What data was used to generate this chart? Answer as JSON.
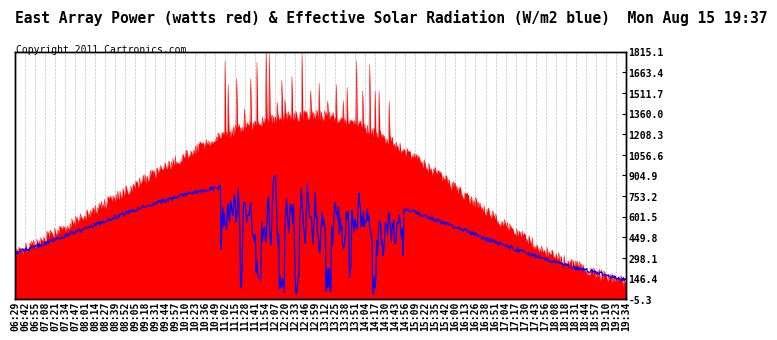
{
  "title": "East Array Power (watts red) & Effective Solar Radiation (W/m2 blue)  Mon Aug 15 19:37",
  "copyright": "Copyright 2011 Cartronics.com",
  "background_color": "#ffffff",
  "plot_bg_color": "#ffffff",
  "grid_color": "#b0b0b0",
  "ylim": [
    -5.3,
    1815.1
  ],
  "yticks": [
    1815.1,
    1663.4,
    1511.7,
    1360.0,
    1208.3,
    1056.6,
    904.9,
    753.2,
    601.5,
    449.8,
    298.1,
    146.4,
    -5.3
  ],
  "x_labels": [
    "06:29",
    "06:42",
    "06:55",
    "07:08",
    "07:21",
    "07:34",
    "07:47",
    "08:01",
    "08:14",
    "08:27",
    "08:39",
    "08:52",
    "09:05",
    "09:18",
    "09:31",
    "09:44",
    "09:57",
    "10:10",
    "10:23",
    "10:36",
    "10:49",
    "11:02",
    "11:15",
    "11:28",
    "11:41",
    "11:54",
    "12:07",
    "12:20",
    "12:33",
    "12:46",
    "12:59",
    "13:12",
    "13:25",
    "13:38",
    "13:51",
    "14:04",
    "14:17",
    "14:30",
    "14:43",
    "14:56",
    "15:09",
    "15:22",
    "15:35",
    "15:42",
    "16:00",
    "16:13",
    "16:26",
    "16:38",
    "16:51",
    "17:04",
    "17:17",
    "17:30",
    "17:43",
    "17:56",
    "18:08",
    "18:18",
    "18:31",
    "18:44",
    "18:57",
    "19:10",
    "19:23",
    "19:34"
  ],
  "red_color": "#ff0000",
  "blue_color": "#0000ff",
  "title_fontsize": 10.5,
  "tick_fontsize": 7,
  "copyright_fontsize": 7
}
